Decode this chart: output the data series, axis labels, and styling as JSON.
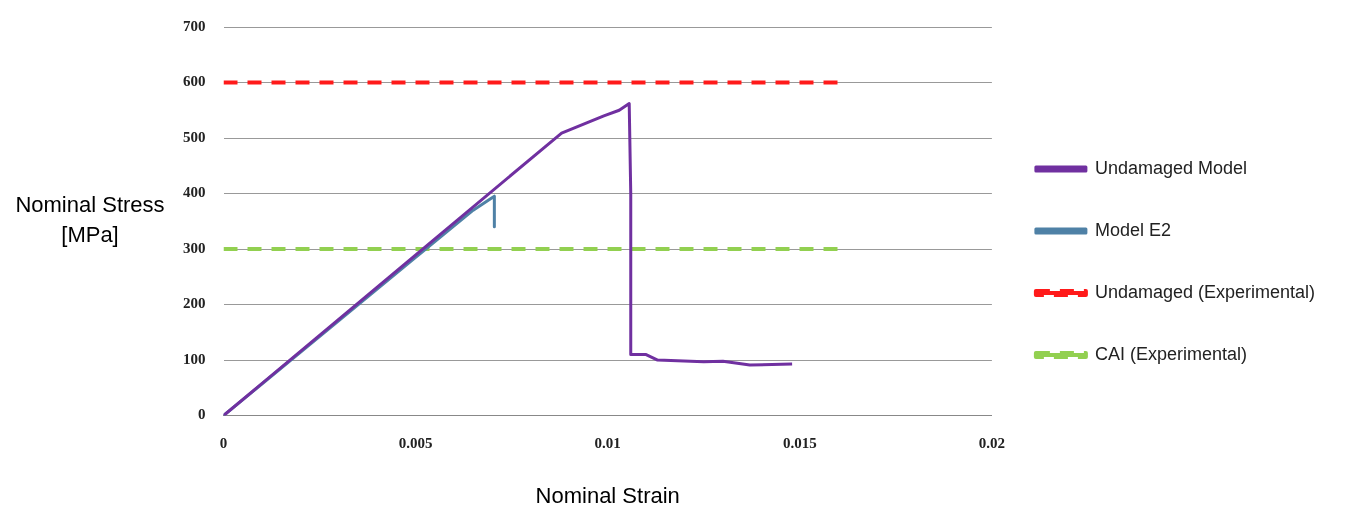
{
  "chart_data": {
    "type": "line",
    "xlabel": "Nominal Strain",
    "ylabel": "Nominal Stress [MPa]",
    "xlim": [
      0,
      0.02
    ],
    "xticks": [
      0,
      0.005,
      0.01,
      0.015,
      0.02
    ],
    "ylim": [
      0,
      700
    ],
    "yticks": [
      0,
      100,
      200,
      300,
      400,
      500,
      600,
      700
    ],
    "grid": "y",
    "legend": "right",
    "marker": "none",
    "series": [
      {
        "name": "Undamaged Model",
        "color": "#7030a0",
        "line_style": "solid",
        "x": [
          0,
          0.0088,
          0.0099,
          0.0103,
          0.01056,
          0.0106,
          0.0106,
          0.011,
          0.0113,
          0.0125,
          0.013,
          0.0137,
          0.0148
        ],
        "values": [
          0,
          509,
          540,
          550,
          562,
          400,
          110,
          110,
          100,
          97,
          98,
          91,
          93
        ]
      },
      {
        "name": "Model E2",
        "color": "#4f81a6",
        "line_style": "solid",
        "x": [
          0,
          0.005,
          0.0065,
          0.007,
          0.00705,
          0.00705
        ],
        "values": [
          0,
          285,
          370,
          393,
          395,
          340
        ]
      },
      {
        "name": "Undamaged (Experimental)",
        "color": "#ff1a1a",
        "line_style": "dashed",
        "x": [
          0,
          0.016
        ],
        "values": [
          600,
          600
        ]
      },
      {
        "name": "CAI (Experimental)",
        "color": "#92d050",
        "line_style": "dashed",
        "x": [
          0,
          0.016
        ],
        "values": [
          300,
          300
        ]
      }
    ]
  }
}
